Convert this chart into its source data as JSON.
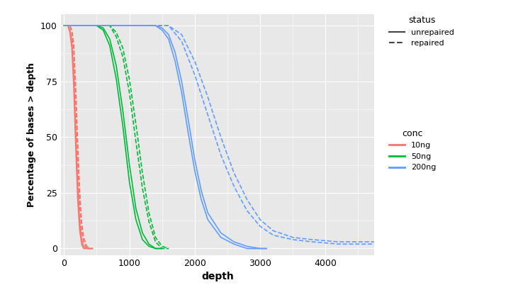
{
  "xlabel": "depth",
  "ylabel": "Percentage of bases > depth",
  "plot_bg_color": "#e8e8e8",
  "grid_color": "white",
  "xlim": [
    -50,
    4750
  ],
  "ylim": [
    -3,
    105
  ],
  "yticks": [
    0,
    25,
    50,
    75,
    100
  ],
  "xticks": [
    0,
    1000,
    2000,
    3000,
    4000
  ],
  "colors": {
    "red": "#F8766D",
    "green": "#00BA38",
    "blue": "#619CFF"
  },
  "series": [
    {
      "x": [
        0,
        30,
        60,
        90,
        120,
        150,
        180,
        210,
        240,
        270,
        300,
        350,
        400
      ],
      "y": [
        100,
        100,
        100,
        98,
        93,
        78,
        52,
        28,
        12,
        4,
        1,
        0,
        0
      ],
      "color": "red",
      "style": "solid"
    },
    {
      "x": [
        0,
        30,
        60,
        90,
        120,
        150,
        180,
        210,
        240,
        270,
        300,
        350,
        400
      ],
      "y": [
        100,
        100,
        100,
        97,
        90,
        72,
        45,
        22,
        8,
        2,
        0,
        0,
        0
      ],
      "color": "red",
      "style": "solid"
    },
    {
      "x": [
        0,
        30,
        60,
        90,
        120,
        150,
        180,
        210,
        240,
        270,
        300,
        350,
        400,
        450
      ],
      "y": [
        100,
        100,
        100,
        100,
        98,
        92,
        72,
        48,
        26,
        12,
        5,
        1,
        0,
        0
      ],
      "color": "red",
      "style": "dashed"
    },
    {
      "x": [
        0,
        30,
        60,
        90,
        120,
        150,
        180,
        210,
        240,
        270,
        300,
        350,
        400,
        450
      ],
      "y": [
        100,
        100,
        100,
        100,
        97,
        88,
        65,
        40,
        20,
        8,
        3,
        0,
        0,
        0
      ],
      "color": "red",
      "style": "dashed"
    },
    {
      "x": [
        0,
        100,
        300,
        500,
        600,
        700,
        800,
        900,
        1000,
        1100,
        1200,
        1300,
        1400,
        1500
      ],
      "y": [
        100,
        100,
        100,
        100,
        99,
        94,
        82,
        62,
        38,
        18,
        7,
        2,
        0,
        0
      ],
      "color": "green",
      "style": "solid"
    },
    {
      "x": [
        0,
        100,
        300,
        500,
        600,
        700,
        800,
        900,
        1000,
        1100,
        1200,
        1300,
        1400,
        1500
      ],
      "y": [
        100,
        100,
        100,
        100,
        98,
        91,
        76,
        55,
        30,
        13,
        4,
        1,
        0,
        0
      ],
      "color": "green",
      "style": "solid"
    },
    {
      "x": [
        0,
        100,
        300,
        500,
        700,
        800,
        900,
        1000,
        1100,
        1200,
        1300,
        1400,
        1500,
        1600
      ],
      "y": [
        100,
        100,
        100,
        100,
        100,
        97,
        90,
        76,
        56,
        34,
        16,
        5,
        1,
        0
      ],
      "color": "green",
      "style": "dashed"
    },
    {
      "x": [
        0,
        100,
        300,
        500,
        700,
        800,
        900,
        1000,
        1100,
        1200,
        1300,
        1400,
        1500,
        1600
      ],
      "y": [
        100,
        100,
        100,
        100,
        100,
        95,
        86,
        70,
        48,
        27,
        12,
        3,
        0,
        0
      ],
      "color": "green",
      "style": "dashed"
    },
    {
      "x": [
        0,
        500,
        1000,
        1200,
        1400,
        1500,
        1600,
        1700,
        1800,
        1900,
        2000,
        2100,
        2200,
        2400,
        2600,
        2800,
        3000,
        3100
      ],
      "y": [
        100,
        100,
        100,
        100,
        100,
        99,
        96,
        88,
        75,
        58,
        40,
        26,
        16,
        7,
        3,
        1,
        0,
        0
      ],
      "color": "blue",
      "style": "solid"
    },
    {
      "x": [
        0,
        500,
        1000,
        1200,
        1400,
        1500,
        1600,
        1700,
        1800,
        1900,
        2000,
        2100,
        2200,
        2400,
        2600,
        2800,
        3000,
        3100
      ],
      "y": [
        100,
        100,
        100,
        100,
        100,
        98,
        94,
        84,
        70,
        52,
        35,
        22,
        13,
        5,
        2,
        0,
        0,
        0
      ],
      "color": "blue",
      "style": "solid"
    },
    {
      "x": [
        0,
        500,
        1000,
        1200,
        1400,
        1600,
        1800,
        2000,
        2200,
        2400,
        2600,
        2800,
        3000,
        3200,
        3500,
        3800,
        4200,
        4750
      ],
      "y": [
        100,
        100,
        100,
        100,
        100,
        100,
        96,
        84,
        68,
        50,
        34,
        22,
        13,
        8,
        5,
        4,
        3,
        3
      ],
      "color": "blue",
      "style": "dashed"
    },
    {
      "x": [
        0,
        500,
        1000,
        1200,
        1400,
        1600,
        1800,
        2000,
        2200,
        2400,
        2600,
        2800,
        3000,
        3200,
        3500,
        3800,
        4200,
        4750
      ],
      "y": [
        100,
        100,
        100,
        100,
        100,
        100,
        93,
        78,
        60,
        42,
        28,
        17,
        10,
        6,
        4,
        3,
        2,
        2
      ],
      "color": "blue",
      "style": "dashed"
    }
  ]
}
